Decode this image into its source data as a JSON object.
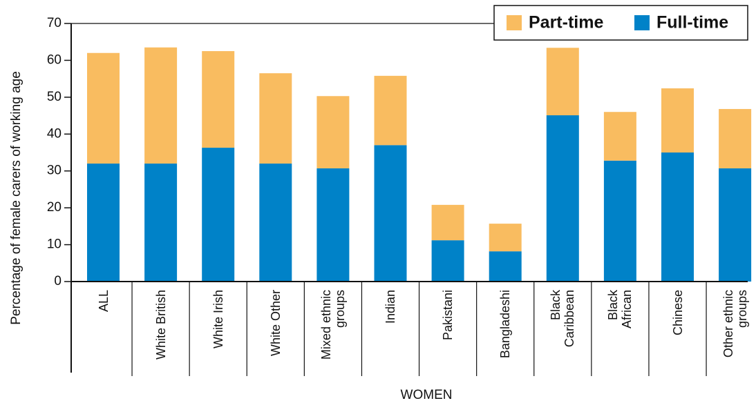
{
  "chart_data": {
    "type": "stacked_bar",
    "y_label": "Percentage of female carers of working age",
    "x_label": "WOMEN",
    "categories": [
      "ALL",
      "White British",
      "White Irish",
      "White Other",
      "Mixed ethnic\ngroups",
      "Indian",
      "Pakistani",
      "Bangladeshi",
      "Black\nCaribbean",
      "Black\nAfrican",
      "Chinese",
      "Other ethnic\ngroups"
    ],
    "series": [
      {
        "name": "Full-time",
        "color": "#0082c8",
        "values": [
          32,
          32,
          36.3,
          32,
          30.7,
          37,
          11.2,
          8.2,
          45.1,
          32.8,
          35,
          30.7
        ]
      },
      {
        "name": "Part-time",
        "color": "#f9bc60",
        "values": [
          30,
          31.5,
          26.2,
          24.5,
          19.6,
          18.8,
          9.6,
          7.5,
          18.3,
          13.2,
          17.4,
          16.1
        ]
      }
    ],
    "ylim": [
      0,
      70
    ],
    "yticks": [
      0,
      10,
      20,
      30,
      40,
      50,
      60,
      70
    ],
    "legend": "top-right"
  }
}
